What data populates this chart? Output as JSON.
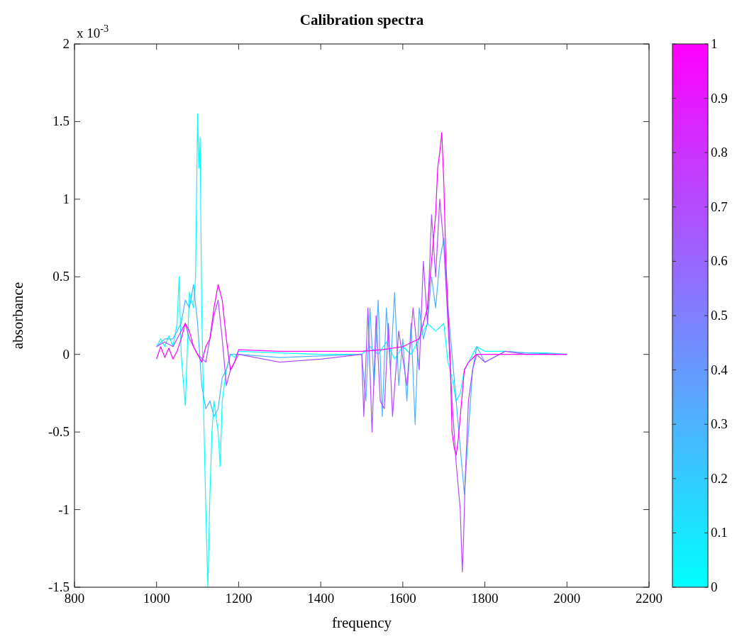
{
  "chart_data": {
    "type": "line",
    "title": "Calibration spectra",
    "xlabel": "frequency",
    "ylabel": "absorbance",
    "annotations": [
      "x 10$^{-3}$"
    ],
    "xlim": [
      800,
      2200
    ],
    "xticks": [
      800,
      1000,
      1200,
      1400,
      1600,
      1800,
      2000,
      2200
    ],
    "ylim": [
      -1.5,
      2
    ],
    "yticks": [
      -1.5,
      -1,
      -0.5,
      0,
      0.5,
      1,
      1.5,
      2
    ],
    "clim": [
      0,
      1
    ],
    "cticks": [
      0,
      0.1,
      0.2,
      0.3,
      0.4,
      0.5,
      0.6,
      0.7,
      0.8,
      0.9,
      1
    ],
    "grid": false,
    "marker": "none",
    "line_style": "solid",
    "series": [
      {
        "color": "#00ffff",
        "x": [
          1000,
          1010,
          1020,
          1030,
          1040,
          1050,
          1055,
          1060,
          1070,
          1080,
          1090,
          1095,
          1100,
          1103,
          1106,
          1110,
          1115,
          1120,
          1125,
          1130,
          1135,
          1140,
          1150,
          1155,
          1160,
          1170,
          1180,
          1190,
          1200,
          1300,
          1400,
          1500,
          1520,
          1540,
          1560,
          1580,
          1600,
          1620,
          1640,
          1660,
          1680,
          1700,
          1710,
          1720,
          1730,
          1740,
          1750,
          1760,
          1780,
          1800,
          1850,
          1900,
          1950,
          2000
        ],
        "values": [
          0.05,
          0.1,
          0.05,
          0.12,
          0.05,
          0.2,
          0.5,
          0.0,
          -0.33,
          0.4,
          0.3,
          0.5,
          1.55,
          1.2,
          1.4,
          0.3,
          -0.4,
          -1.0,
          -1.5,
          -0.9,
          -0.5,
          -0.3,
          -0.5,
          -0.72,
          -0.3,
          -0.1,
          0.0,
          -0.02,
          0.02,
          0.01,
          0.0,
          0.0,
          0.05,
          0.0,
          0.08,
          -0.03,
          0.05,
          0.0,
          0.1,
          0.2,
          0.15,
          0.2,
          -0.05,
          -0.15,
          -0.3,
          -0.25,
          -0.1,
          -0.05,
          0.05,
          0.02,
          0.02,
          0.01,
          0.01,
          0.0
        ]
      },
      {
        "color": "#4db2ff",
        "x": [
          1000,
          1020,
          1040,
          1060,
          1070,
          1080,
          1090,
          1100,
          1110,
          1120,
          1130,
          1140,
          1150,
          1160,
          1170,
          1180,
          1200,
          1300,
          1400,
          1500,
          1510,
          1520,
          1530,
          1540,
          1550,
          1560,
          1570,
          1580,
          1590,
          1600,
          1610,
          1620,
          1630,
          1640,
          1650,
          1660,
          1670,
          1680,
          1690,
          1700,
          1705,
          1710,
          1720,
          1730,
          1740,
          1750,
          1760,
          1770,
          1780,
          1800,
          1850,
          1900,
          2000
        ],
        "values": [
          0.05,
          0.1,
          0.1,
          0.2,
          0.35,
          0.3,
          0.45,
          0.2,
          -0.2,
          -0.35,
          -0.3,
          -0.4,
          -0.35,
          -0.15,
          -0.1,
          0.0,
          0.0,
          -0.02,
          -0.01,
          0.0,
          -0.3,
          0.3,
          -0.2,
          0.35,
          -0.4,
          0.3,
          -0.1,
          0.4,
          -0.2,
          0.1,
          -0.3,
          0.2,
          -0.45,
          0.3,
          0.1,
          0.2,
          0.5,
          0.3,
          0.6,
          0.75,
          0.5,
          0.3,
          0.0,
          -0.3,
          -0.6,
          -0.9,
          -0.5,
          -0.1,
          0.05,
          -0.05,
          0.02,
          0.01,
          0.0
        ]
      },
      {
        "color": "#b34cff",
        "x": [
          1000,
          1020,
          1040,
          1060,
          1070,
          1080,
          1100,
          1120,
          1140,
          1150,
          1160,
          1170,
          1180,
          1200,
          1300,
          1400,
          1500,
          1505,
          1515,
          1525,
          1535,
          1545,
          1555,
          1565,
          1575,
          1590,
          1610,
          1625,
          1640,
          1650,
          1660,
          1670,
          1680,
          1690,
          1700,
          1710,
          1720,
          1730,
          1740,
          1745,
          1748,
          1752,
          1760,
          1770,
          1780,
          1800,
          1850,
          1900,
          2000
        ],
        "values": [
          0.05,
          0.08,
          0.05,
          0.15,
          0.2,
          0.1,
          0.0,
          -0.05,
          0.25,
          0.35,
          0.1,
          -0.2,
          -0.1,
          0.0,
          -0.05,
          -0.03,
          0.0,
          -0.4,
          0.3,
          -0.5,
          0.25,
          -0.3,
          -0.35,
          0.2,
          -0.4,
          0.15,
          -0.2,
          0.3,
          -0.1,
          0.6,
          0.2,
          0.9,
          0.5,
          1.0,
          0.7,
          0.2,
          -0.3,
          -0.7,
          -1.0,
          -1.4,
          -1.2,
          -0.8,
          -0.3,
          -0.1,
          0.0,
          -0.05,
          0.02,
          0.0,
          0.0
        ]
      },
      {
        "color": "#ff00ff",
        "x": [
          1000,
          1010,
          1020,
          1030,
          1040,
          1050,
          1060,
          1070,
          1080,
          1090,
          1100,
          1110,
          1120,
          1130,
          1140,
          1150,
          1160,
          1170,
          1180,
          1190,
          1200,
          1300,
          1400,
          1500,
          1550,
          1600,
          1640,
          1660,
          1670,
          1680,
          1685,
          1690,
          1695,
          1700,
          1705,
          1710,
          1715,
          1720,
          1725,
          1730,
          1735,
          1740,
          1750,
          1760,
          1780,
          1800,
          1900,
          2000
        ],
        "values": [
          -0.03,
          0.05,
          -0.02,
          0.04,
          -0.03,
          0.02,
          0.1,
          0.2,
          0.15,
          0.05,
          0.0,
          -0.05,
          0.05,
          0.1,
          0.3,
          0.45,
          0.35,
          0.1,
          -0.1,
          -0.05,
          0.03,
          0.02,
          0.02,
          0.02,
          0.03,
          0.05,
          0.1,
          0.3,
          0.6,
          0.9,
          1.2,
          1.3,
          1.43,
          1.1,
          0.6,
          0.3,
          0.0,
          -0.5,
          -0.6,
          -0.65,
          -0.55,
          -0.4,
          -0.1,
          -0.05,
          0.0,
          0.0,
          0.0,
          0.0
        ]
      }
    ]
  }
}
